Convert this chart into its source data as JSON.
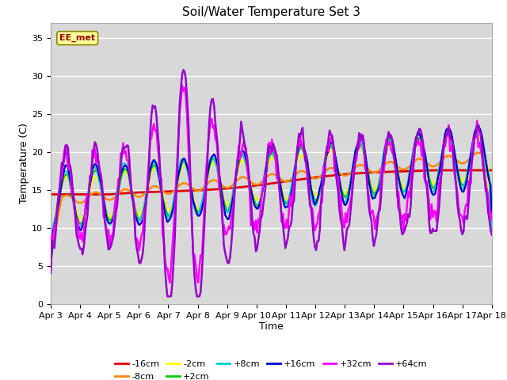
{
  "title": "Soil/Water Temperature Set 3",
  "xlabel": "Time",
  "ylabel": "Temperature (C)",
  "ylim": [
    0,
    37
  ],
  "yticks": [
    0,
    5,
    10,
    15,
    20,
    25,
    30,
    35
  ],
  "date_labels": [
    "Apr 3",
    "Apr 4",
    "Apr 5",
    "Apr 6",
    "Apr 7",
    "Apr 8",
    "Apr 9",
    "Apr 10",
    "Apr 11",
    "Apr 12",
    "Apr 13",
    "Apr 14",
    "Apr 15",
    "Apr 16",
    "Apr 17",
    "Apr 18"
  ],
  "series_names": [
    "-16cm",
    "-8cm",
    "-2cm",
    "+2cm",
    "+8cm",
    "+16cm",
    "+32cm",
    "+64cm"
  ],
  "series_colors": [
    "#dd0000",
    "#ff8800",
    "#ffff00",
    "#00cc00",
    "#00cccc",
    "#0000cc",
    "#ff00ff",
    "#9900cc"
  ],
  "series_linewidths": [
    2.0,
    1.8,
    1.6,
    1.6,
    1.6,
    1.6,
    1.8,
    1.8
  ],
  "annotation_text": "EE_met",
  "bg_color": "#e8e8e8",
  "title_fontsize": 11,
  "label_fontsize": 9,
  "tick_fontsize": 8
}
